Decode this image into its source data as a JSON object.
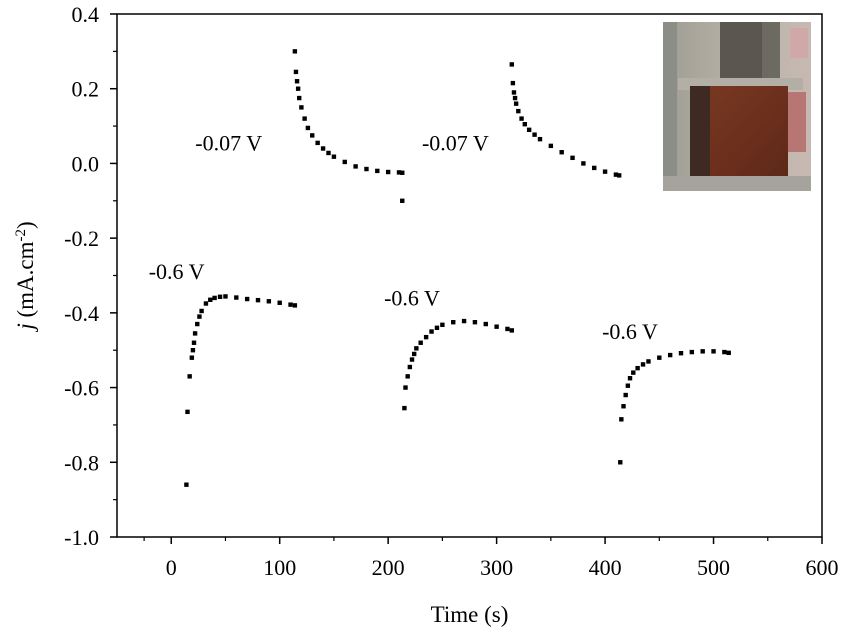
{
  "chart_data": {
    "type": "scatter",
    "title": "",
    "xlabel": "Time (s)",
    "ylabel": {
      "italic": "j",
      "prefix": " (mA.cm",
      "superscript": "-2",
      "suffix": ")"
    },
    "xlim": [
      -50,
      600
    ],
    "ylim": [
      -1.0,
      0.4
    ],
    "x_ticks": [
      0,
      100,
      200,
      300,
      400,
      500,
      600
    ],
    "x_tick_labels": [
      "0",
      "100",
      "200",
      "300",
      "400",
      "500",
      "600"
    ],
    "y_ticks": [
      0.4,
      0.2,
      0.0,
      -0.2,
      -0.4,
      -0.6,
      -0.8,
      -1.0
    ],
    "y_tick_labels": [
      "0.4",
      "0.2",
      "0.0",
      "-0.2",
      "-0.4",
      "-0.6",
      "-0.8",
      "-1.0"
    ],
    "grid": false,
    "legend": "none",
    "marker_color": "#000000",
    "inset": {
      "type": "photo",
      "placement": "top-right"
    },
    "annotations": [
      {
        "text": "-0.6 V",
        "x": 5,
        "y": -0.31
      },
      {
        "text": "-0.07 V",
        "x": 53,
        "y": 0.035
      },
      {
        "text": "-0.6 V",
        "x": 222,
        "y": -0.38
      },
      {
        "text": "-0.07 V",
        "x": 262,
        "y": 0.035
      },
      {
        "text": "-0.6 V",
        "x": 423,
        "y": -0.47
      }
    ],
    "series": [
      {
        "x": [
          14,
          15,
          17,
          19,
          20,
          21,
          22,
          24,
          26,
          28,
          32,
          36,
          40,
          45,
          50,
          60,
          70,
          80,
          90,
          100,
          110,
          114
        ],
        "y": [
          -0.86,
          -0.665,
          -0.57,
          -0.52,
          -0.5,
          -0.48,
          -0.455,
          -0.43,
          -0.41,
          -0.395,
          -0.375,
          -0.365,
          -0.36,
          -0.357,
          -0.356,
          -0.359,
          -0.363,
          -0.366,
          -0.369,
          -0.373,
          -0.378,
          -0.38
        ]
      },
      {
        "x": [
          114,
          115,
          116,
          117,
          118,
          120,
          123,
          126,
          130,
          135,
          140,
          145,
          150,
          160,
          170,
          180,
          190,
          200,
          210,
          213
        ],
        "y": [
          0.3,
          0.245,
          0.22,
          0.2,
          0.175,
          0.15,
          0.12,
          0.095,
          0.075,
          0.055,
          0.04,
          0.028,
          0.018,
          0.004,
          -0.008,
          -0.015,
          -0.02,
          -0.023,
          -0.024,
          -0.025
        ]
      },
      {
        "x": [
          213
        ],
        "y": [
          -0.1
        ]
      },
      {
        "x": [
          215,
          216,
          218,
          220,
          222,
          224,
          226,
          230,
          235,
          240,
          245,
          250,
          260,
          270,
          280,
          290,
          300,
          310,
          314
        ],
        "y": [
          -0.655,
          -0.6,
          -0.57,
          -0.545,
          -0.525,
          -0.51,
          -0.495,
          -0.48,
          -0.465,
          -0.45,
          -0.44,
          -0.432,
          -0.425,
          -0.422,
          -0.425,
          -0.43,
          -0.437,
          -0.443,
          -0.447
        ]
      },
      {
        "x": [
          314,
          315,
          316,
          317,
          318,
          320,
          323,
          326,
          330,
          335,
          340,
          350,
          360,
          370,
          380,
          390,
          400,
          410,
          413
        ],
        "y": [
          0.265,
          0.215,
          0.19,
          0.175,
          0.16,
          0.14,
          0.12,
          0.105,
          0.09,
          0.077,
          0.065,
          0.047,
          0.03,
          0.015,
          0.0,
          -0.012,
          -0.022,
          -0.03,
          -0.032
        ]
      },
      {
        "x": [
          414,
          415,
          417,
          419,
          421,
          423,
          426,
          430,
          435,
          440,
          450,
          460,
          470,
          480,
          490,
          500,
          510,
          514
        ],
        "y": [
          -0.8,
          -0.685,
          -0.65,
          -0.62,
          -0.595,
          -0.575,
          -0.56,
          -0.548,
          -0.538,
          -0.53,
          -0.52,
          -0.513,
          -0.508,
          -0.505,
          -0.503,
          -0.503,
          -0.505,
          -0.507
        ]
      }
    ]
  }
}
